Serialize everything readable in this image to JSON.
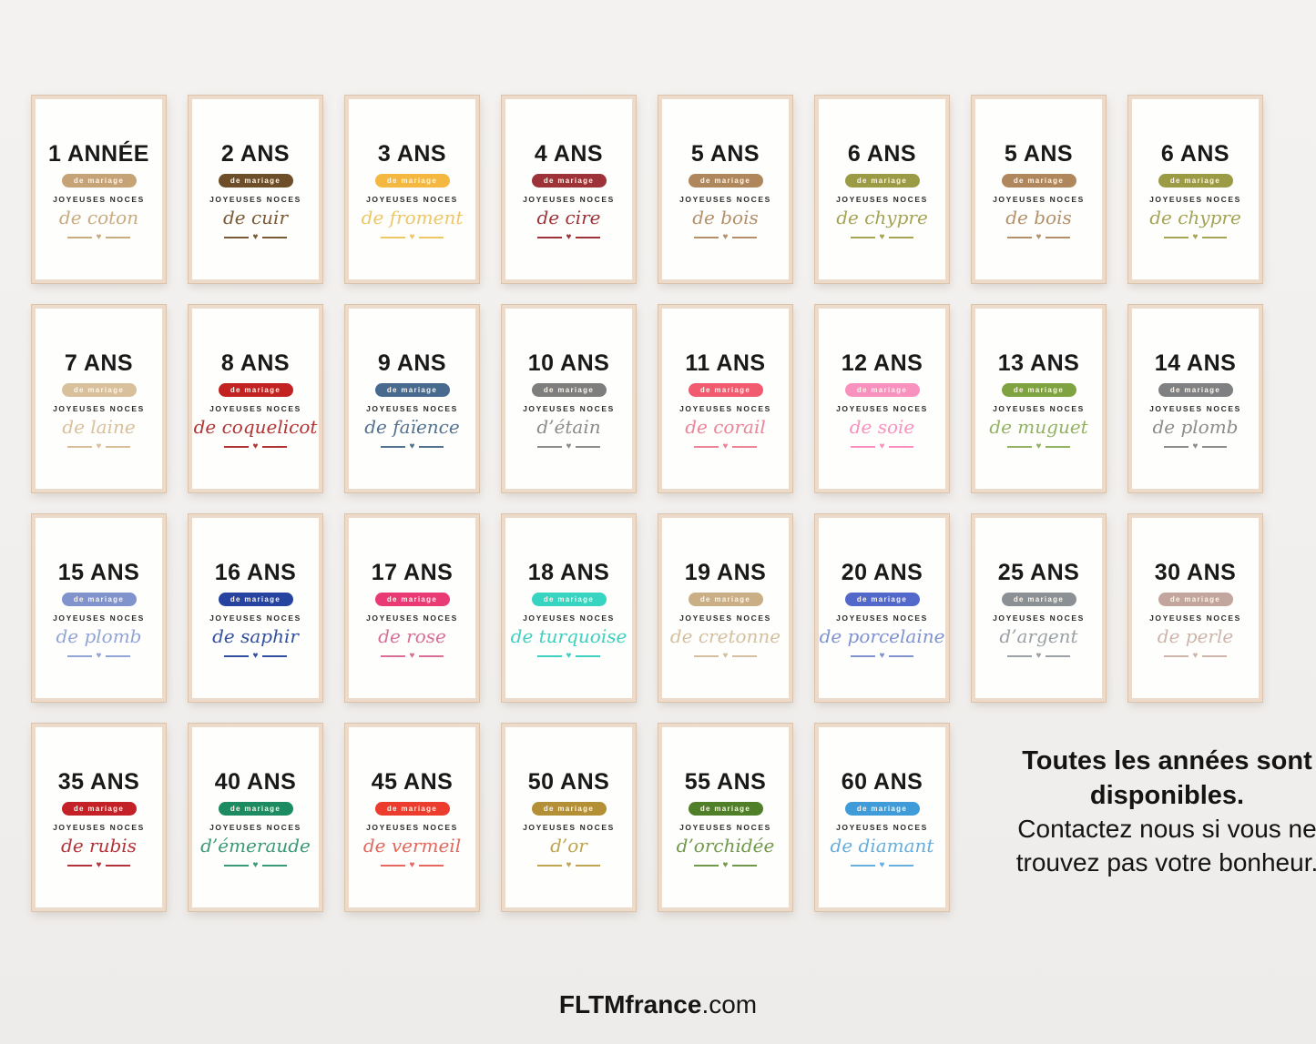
{
  "labels": {
    "band": "de mariage",
    "noces": "JOYEUSES NOCES"
  },
  "posters": [
    {
      "row": 1,
      "title": "1 ANNÉE",
      "script": "de coton",
      "band_color": "#c6a277",
      "ink_color": "#c9ab80"
    },
    {
      "row": 1,
      "title": "2 ANS",
      "script": "de cuir",
      "band_color": "#6e4e28",
      "ink_color": "#7a5a34"
    },
    {
      "row": 1,
      "title": "3 ANS",
      "script": "de froment",
      "band_color": "#f4b840",
      "ink_color": "#edc766"
    },
    {
      "row": 1,
      "title": "4 ANS",
      "script": "de cire",
      "band_color": "#9d3339",
      "ink_color": "#9d3339"
    },
    {
      "row": 1,
      "title": "5 ANS",
      "script": "de bois",
      "band_color": "#b0875c",
      "ink_color": "#b3906a"
    },
    {
      "row": 1,
      "title": "6 ANS",
      "script": "de chypre",
      "band_color": "#9b9a45",
      "ink_color": "#a5a455"
    },
    {
      "row": 1,
      "title": "5 ANS",
      "script": "de bois",
      "band_color": "#b0875c",
      "ink_color": "#b3906a"
    },
    {
      "row": 1,
      "title": "6 ANS",
      "script": "de chypre",
      "band_color": "#9b9a45",
      "ink_color": "#a5a455"
    },
    {
      "row": 2,
      "title": "7 ANS",
      "script": "de laine",
      "band_color": "#d8c09c",
      "ink_color": "#d8c09c"
    },
    {
      "row": 2,
      "title": "8 ANS",
      "script": "de coquelicot",
      "band_color": "#c32222",
      "ink_color": "#b23535"
    },
    {
      "row": 2,
      "title": "9 ANS",
      "script": "de faïence",
      "band_color": "#476a8e",
      "ink_color": "#54718e"
    },
    {
      "row": 2,
      "title": "10 ANS",
      "script": "d’étain",
      "band_color": "#7e7e7e",
      "ink_color": "#8c8c8c"
    },
    {
      "row": 2,
      "title": "11 ANS",
      "script": "de corail",
      "band_color": "#f25a70",
      "ink_color": "#ea8496"
    },
    {
      "row": 2,
      "title": "12 ANS",
      "script": "de soie",
      "band_color": "#f891bd",
      "ink_color": "#f891bd"
    },
    {
      "row": 2,
      "title": "13 ANS",
      "script": "de muguet",
      "band_color": "#80a341",
      "ink_color": "#93b264"
    },
    {
      "row": 2,
      "title": "14 ANS",
      "script": "de plomb",
      "band_color": "#7f8082",
      "ink_color": "#8c8c8c"
    },
    {
      "row": 3,
      "title": "15 ANS",
      "script": "de plomb",
      "band_color": "#8093cd",
      "ink_color": "#93a4d6"
    },
    {
      "row": 3,
      "title": "16 ANS",
      "script": "de saphir",
      "band_color": "#26439f",
      "ink_color": "#32509f"
    },
    {
      "row": 3,
      "title": "17 ANS",
      "script": "de rose",
      "band_color": "#e93a76",
      "ink_color": "#d96f97"
    },
    {
      "row": 3,
      "title": "18 ANS",
      "script": "de turquoise",
      "band_color": "#36d4c1",
      "ink_color": "#3fd0bf"
    },
    {
      "row": 3,
      "title": "19 ANS",
      "script": "de cretonne",
      "band_color": "#c9ae86",
      "ink_color": "#d4c0a0"
    },
    {
      "row": 3,
      "title": "20 ANS",
      "script": "de porcelaine",
      "band_color": "#5268ca",
      "ink_color": "#8092d0"
    },
    {
      "row": 3,
      "title": "25 ANS",
      "script": "d’argent",
      "band_color": "#8a9094",
      "ink_color": "#9ba1a5"
    },
    {
      "row": 3,
      "title": "30 ANS",
      "script": "de perle",
      "band_color": "#c2a59d",
      "ink_color": "#cdb5ac"
    },
    {
      "row": 4,
      "title": "35 ANS",
      "script": "de rubis",
      "band_color": "#c32027",
      "ink_color": "#b2333a"
    },
    {
      "row": 4,
      "title": "40 ANS",
      "script": "d’émeraude",
      "band_color": "#1d8b61",
      "ink_color": "#3c9976"
    },
    {
      "row": 4,
      "title": "45 ANS",
      "script": "de vermeil",
      "band_color": "#eb3c2d",
      "ink_color": "#e5675e"
    },
    {
      "row": 4,
      "title": "50 ANS",
      "script": "d’or",
      "band_color": "#b38f36",
      "ink_color": "#bfa452"
    },
    {
      "row": 4,
      "title": "55 ANS",
      "script": "d’orchidée",
      "band_color": "#4f7f29",
      "ink_color": "#71994c"
    },
    {
      "row": 4,
      "title": "60 ANS",
      "script": "de diamant",
      "band_color": "#409cd9",
      "ink_color": "#67aede"
    }
  ],
  "note": {
    "bold_text": "Toutes les années sont disponibles.",
    "regular_text": "Contactez nous si vous ne trouvez pas votre bonheur."
  },
  "footer": {
    "brand": "FLTMfrance",
    "suffix": ".com"
  }
}
